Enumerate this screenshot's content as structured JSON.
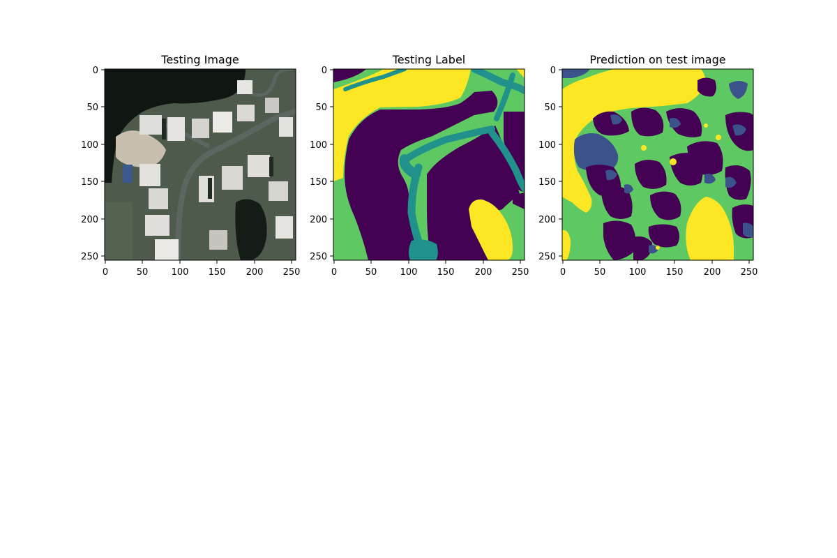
{
  "colors": {
    "background": "#ffffff",
    "axis": "#000000",
    "viridis_class_0": "#440154",
    "viridis_class_1": "#3b528b",
    "viridis_class_2": "#21918c",
    "viridis_class_3": "#5ec962",
    "viridis_class_4": "#fde725",
    "satellite_water": "#111814",
    "satellite_ground": "#4d5a4a",
    "satellite_roof": "#d8d8d6",
    "satellite_road": "#53605a",
    "satellite_sand": "#c8bdaa"
  },
  "panels": [
    {
      "title": "Testing Image",
      "content": "satellite-rgb",
      "xticks": [
        "0",
        "50",
        "100",
        "150",
        "200",
        "250"
      ],
      "yticks": [
        "0",
        "50",
        "100",
        "150",
        "200",
        "250"
      ]
    },
    {
      "title": "Testing Label",
      "content": "segmentation-label",
      "xticks": [
        "0",
        "50",
        "100",
        "150",
        "200",
        "250"
      ],
      "yticks": [
        "0",
        "50",
        "100",
        "150",
        "200",
        "250"
      ]
    },
    {
      "title": "Prediction on test image",
      "content": "segmentation-prediction",
      "xticks": [
        "0",
        "50",
        "100",
        "150",
        "200",
        "250"
      ],
      "yticks": [
        "0",
        "50",
        "100",
        "150",
        "200",
        "250"
      ]
    }
  ]
}
